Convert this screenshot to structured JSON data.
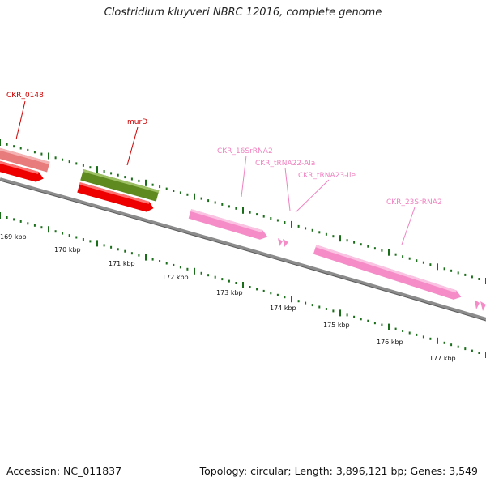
{
  "title": "Clostridium kluyveri NBRC 12016, complete genome",
  "footer": {
    "accession": "Accession: NC_011837",
    "summary": "Topology: circular; Length: 3,896,121 bp; Genes: 3,549"
  },
  "colors": {
    "backbone": "#7a7a7a",
    "tick": "#1a6e1a",
    "gene_red": "#ee0000",
    "gene_salmon": "#e87b7b",
    "gene_olive": "#5f8a1f",
    "rna_pink": "#f58cc8",
    "label_red": "#cc0000",
    "label_pink": "#f080c0"
  },
  "scale_labels": [
    "169 kbp",
    "170 kbp",
    "171 kbp",
    "172 kbp",
    "173 kbp",
    "174 kbp",
    "175 kbp",
    "176 kbp",
    "177 kbp"
  ],
  "feature_labels": [
    {
      "id": "ckr0148",
      "text": "CKR_0148",
      "color": "label_red"
    },
    {
      "id": "murd",
      "text": "murD",
      "color": "label_red"
    },
    {
      "id": "16s",
      "text": "CKR_16SrRNA2",
      "color": "label_pink"
    },
    {
      "id": "trna22",
      "text": "CKR_tRNA22-Ala",
      "color": "label_pink"
    },
    {
      "id": "trna23",
      "text": "CKR_tRNA23-Ile",
      "color": "label_pink"
    },
    {
      "id": "23s",
      "text": "CKR_23SrRNA2",
      "color": "label_pink"
    }
  ]
}
